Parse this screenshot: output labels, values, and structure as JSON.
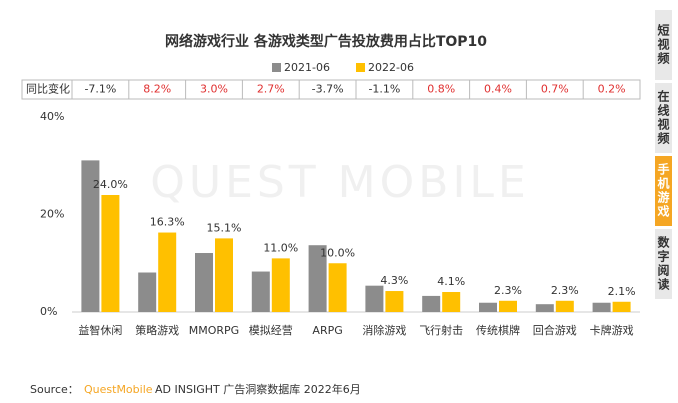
{
  "chart_data": {
    "type": "bar",
    "title": "网络游戏行业 各游戏类型广告投放费用占比TOP10",
    "categories": [
      "益智休闲",
      "策略游戏",
      "MMORPG",
      "模拟经营",
      "ARPG",
      "消除游戏",
      "飞行射击",
      "传统棋牌",
      "回合游戏",
      "卡牌游戏"
    ],
    "series": [
      {
        "name": "2021-06",
        "color": "#8c8c8c",
        "values": [
          31.1,
          8.1,
          12.1,
          8.3,
          13.7,
          5.4,
          3.3,
          1.9,
          1.6,
          1.9
        ]
      },
      {
        "name": "2022-06",
        "color": "#ffc000",
        "values": [
          24.0,
          16.3,
          15.1,
          11.0,
          10.0,
          4.3,
          4.1,
          2.3,
          2.3,
          2.1
        ],
        "value_labels": [
          "24.0%",
          "16.3%",
          "15.1%",
          "11.0%",
          "10.0%",
          "4.3%",
          "4.1%",
          "2.3%",
          "2.3%",
          "2.1%"
        ]
      }
    ],
    "yoy_label": "同比变化",
    "yoy_changes": [
      "-7.1%",
      "8.2%",
      "3.0%",
      "2.7%",
      "-3.7%",
      "-1.1%",
      "0.8%",
      "0.4%",
      "0.7%",
      "0.2%"
    ],
    "ylim": [
      0,
      40
    ],
    "yticks": [
      {
        "value": 0,
        "label": "0%"
      },
      {
        "value": 20,
        "label": "20%"
      },
      {
        "value": 40,
        "label": "40%"
      }
    ],
    "watermark": "QUEST MOBILE",
    "source": {
      "prefix": "Source：",
      "brand": "QuestMobile",
      "text": "AD INSIGHT 广告洞察数据库 2022年6月"
    }
  },
  "side_tabs": [
    {
      "label": "短视频"
    },
    {
      "label": "在线视频"
    },
    {
      "label": "手机游戏",
      "active": true
    },
    {
      "label": "数字阅读"
    }
  ]
}
